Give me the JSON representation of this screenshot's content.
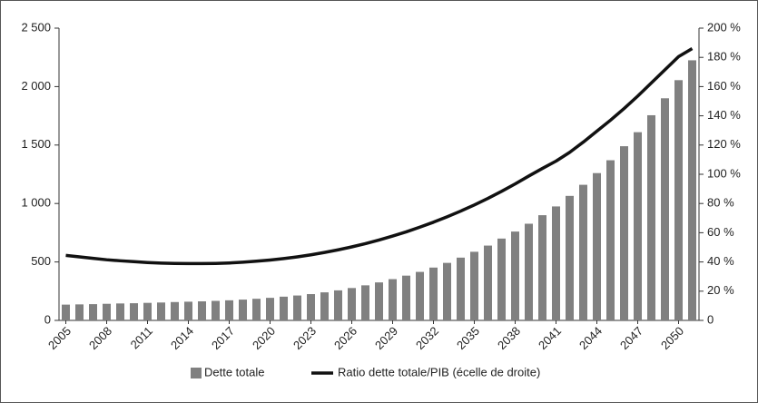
{
  "chart_data": {
    "type": "bar",
    "categories": [
      "2005",
      null,
      null,
      "2008",
      null,
      null,
      "2011",
      null,
      null,
      "2014",
      null,
      null,
      "2017",
      null,
      null,
      "2020",
      null,
      null,
      "2023",
      null,
      null,
      "2026",
      null,
      null,
      "2029",
      null,
      null,
      "2032",
      null,
      null,
      "2035",
      null,
      null,
      "2038",
      null,
      null,
      "2041",
      null,
      null,
      "2044",
      null,
      null,
      "2047",
      null,
      null,
      "2050",
      null
    ],
    "series": [
      {
        "name": "Dette totale",
        "type": "bar",
        "color": "#808080",
        "values": [
          135,
          137,
          139,
          142,
          145,
          147,
          150,
          153,
          157,
          160,
          163,
          167,
          172,
          178,
          185,
          193,
          203,
          213,
          225,
          240,
          257,
          277,
          300,
          325,
          353,
          383,
          415,
          452,
          492,
          537,
          587,
          640,
          700,
          760,
          827,
          900,
          975,
          1065,
          1160,
          1260,
          1370,
          1490,
          1610,
          1755,
          1900,
          2055,
          2225
        ]
      },
      {
        "name": "Ratio dette totale/PIB (écelle de droite)",
        "type": "line",
        "axis": "y2",
        "color": "#111111",
        "values": [
          44.5,
          43.5,
          42.5,
          41.5,
          40.8,
          40.2,
          39.6,
          39.2,
          39,
          38.9,
          38.9,
          39,
          39.3,
          39.8,
          40.5,
          41.3,
          42.3,
          43.5,
          44.9,
          46.5,
          48.3,
          50.3,
          52.5,
          55,
          57.7,
          60.6,
          63.8,
          67.2,
          70.9,
          74.8,
          79,
          83.5,
          88.3,
          93.4,
          98.8,
          104,
          109,
          115,
          122,
          129.5,
          137,
          145,
          153.5,
          162.5,
          171.5,
          180.5,
          186
        ]
      }
    ],
    "ylim": [
      0,
      2500
    ],
    "yticks": [
      0,
      500,
      {
        "value": 1000,
        "label": "1 000"
      },
      {
        "value": 1500,
        "label": "1 500"
      },
      {
        "value": 2000,
        "label": "2 000"
      },
      {
        "value": 2500,
        "label": "2 500"
      }
    ],
    "y2lim": [
      0,
      200
    ],
    "y2ticks": [
      0,
      {
        "value": 20,
        "label": "20 %"
      },
      {
        "value": 40,
        "label": "40 %"
      },
      {
        "value": 60,
        "label": "60 %"
      },
      {
        "value": 80,
        "label": "80 %"
      },
      {
        "value": 100,
        "label": "100 %"
      },
      {
        "value": 120,
        "label": "120 %"
      },
      {
        "value": 140,
        "label": "140 %"
      },
      {
        "value": 160,
        "label": "160 %"
      },
      {
        "value": 180,
        "label": "180 %"
      },
      {
        "value": 200,
        "label": "200 %"
      }
    ],
    "legend": "bottom"
  }
}
